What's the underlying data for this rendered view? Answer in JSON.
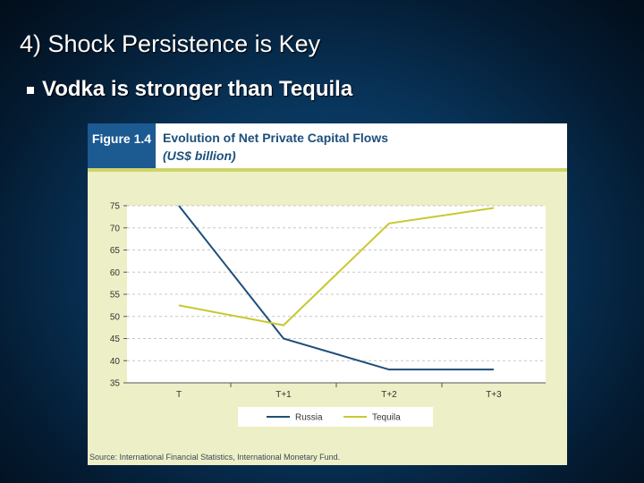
{
  "slide": {
    "title": "4) Shock Persistence is Key",
    "bullet": "Vodka is stronger than Tequila"
  },
  "figure": {
    "label": "Figure 1.4",
    "title": "Evolution of Net Private Capital Flows",
    "subtitle": "(US$ billion)",
    "source": "Source: International Financial Statistics, International Monetary Fund."
  },
  "chart_data": {
    "type": "line",
    "title": "Evolution of Net Private Capital Flows",
    "subtitle": "(US$ billion)",
    "x": [
      "T",
      "T+1",
      "T+2",
      "T+3"
    ],
    "yticks": [
      35,
      40,
      45,
      50,
      55,
      60,
      65,
      70,
      75
    ],
    "ylim": [
      35,
      75
    ],
    "grid": "horizontal dashed",
    "legend_position": "bottom",
    "series": [
      {
        "name": "Russia",
        "color": "#1f4e79",
        "values": [
          75,
          45,
          38,
          38
        ]
      },
      {
        "name": "Tequila",
        "color": "#c8c832",
        "values": [
          52.5,
          48,
          71,
          74.5
        ]
      }
    ]
  }
}
